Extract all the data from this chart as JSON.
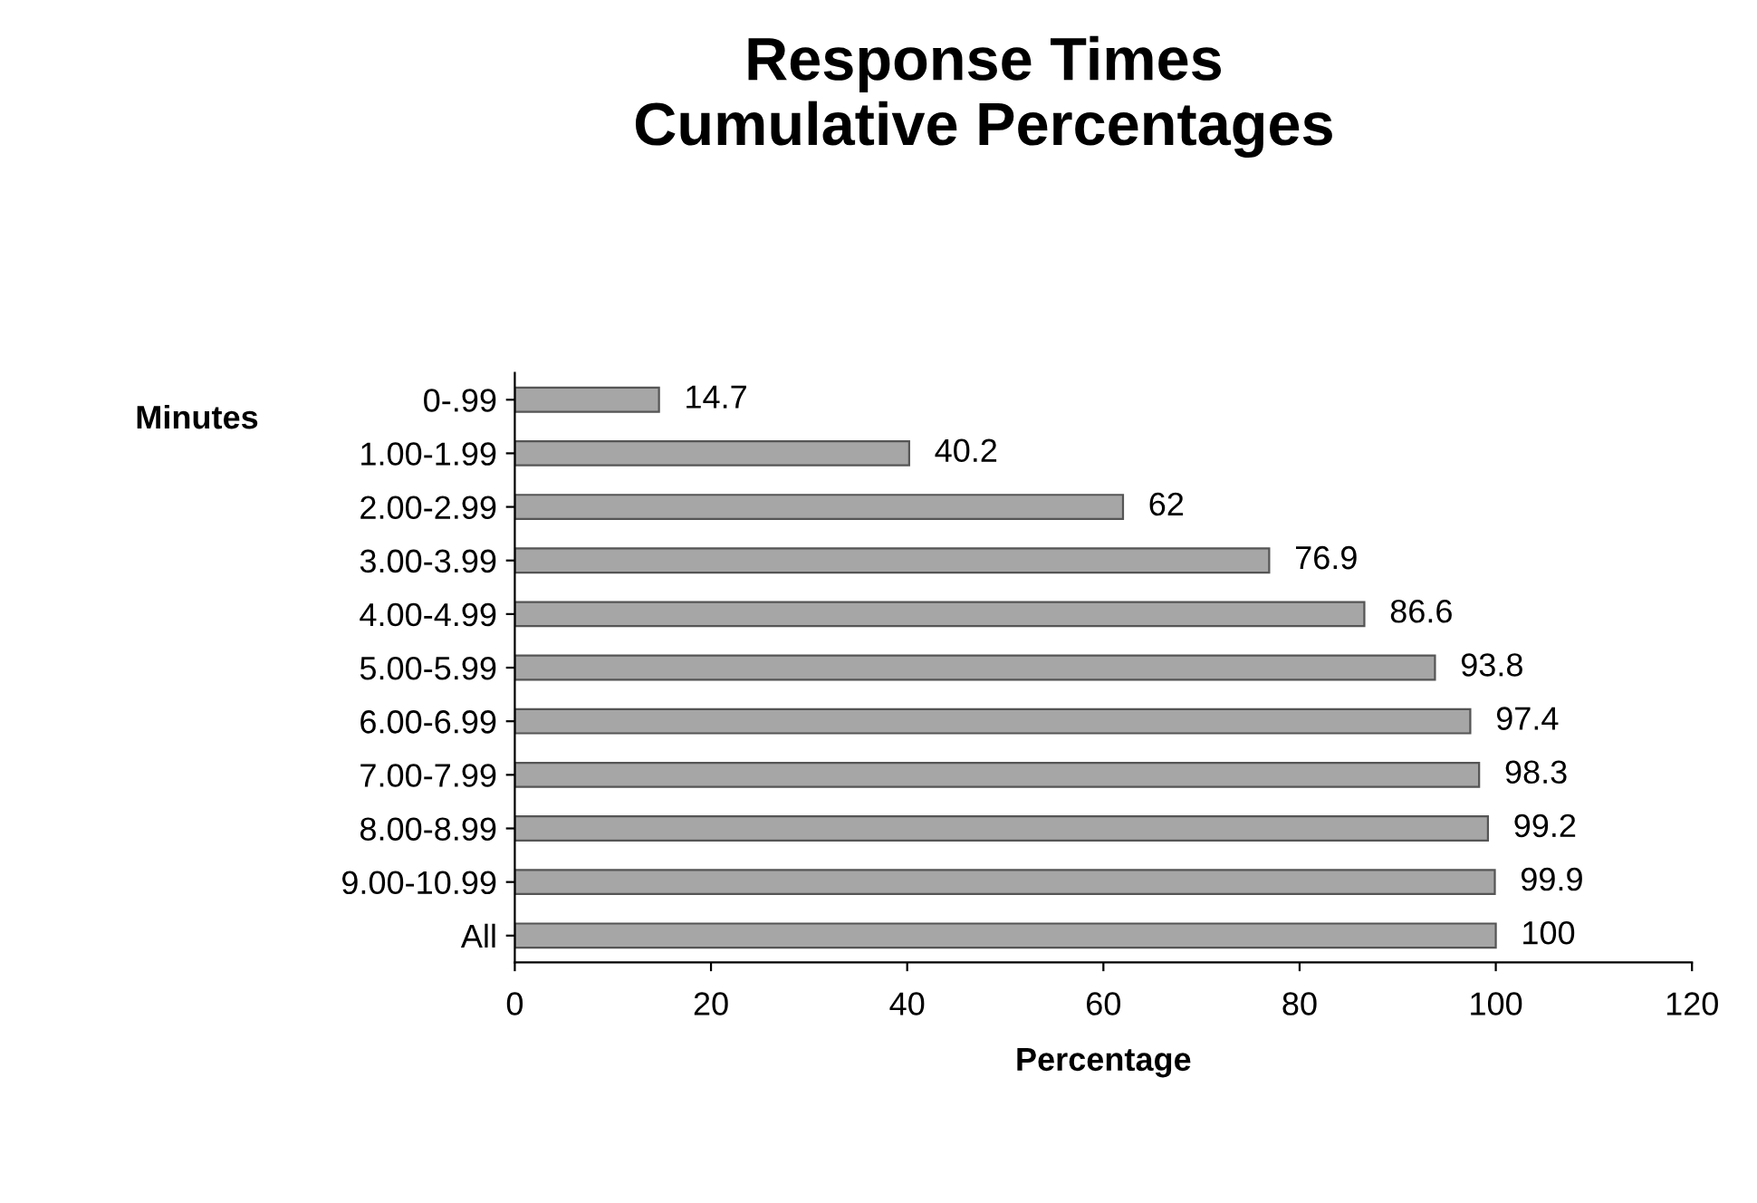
{
  "chart_data": {
    "type": "bar",
    "orientation": "horizontal",
    "title": "Response Times\nCumulative Percentages",
    "xlabel": "Percentage",
    "ylabel": "Minutes",
    "categories": [
      "0-.99",
      "1.00-1.99",
      "2.00-2.99",
      "3.00-3.99",
      "4.00-4.99",
      "5.00-5.99",
      "6.00-6.99",
      "7.00-7.99",
      "8.00-8.99",
      "9.00-10.99",
      "All"
    ],
    "values": [
      14.7,
      40.2,
      62,
      76.9,
      86.6,
      93.8,
      97.4,
      98.3,
      99.2,
      99.9,
      100
    ],
    "color": "#a6a6a6",
    "data_labels": true,
    "xlim": [
      0,
      120
    ],
    "xticks": [
      0,
      20,
      40,
      60,
      80,
      100,
      120
    ],
    "grid": false
  }
}
